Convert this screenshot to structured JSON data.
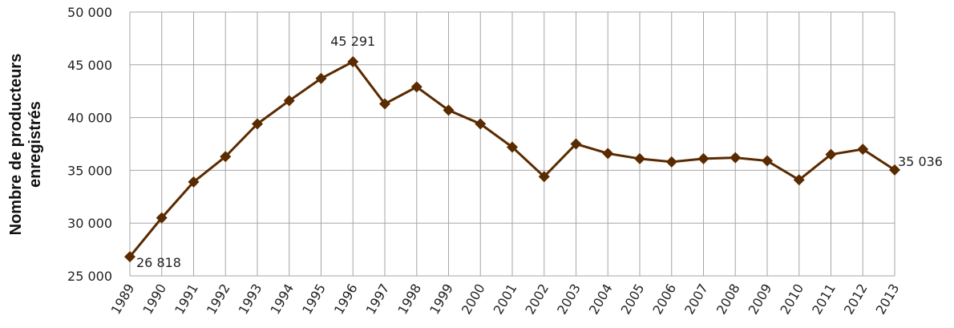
{
  "chart_data": {
    "type": "line",
    "y_label": "Nombre de producteurs enregistrés",
    "categories": [
      "1989",
      "1990",
      "1991",
      "1992",
      "1993",
      "1994",
      "1995",
      "1996",
      "1997",
      "1998",
      "1999",
      "2000",
      "2001",
      "2002",
      "2003",
      "2004",
      "2005",
      "2006",
      "2007",
      "2008",
      "2009",
      "2010",
      "2011",
      "2012",
      "2013"
    ],
    "series": [
      {
        "name": "Nombre de producteurs enregistrés",
        "color": "#5a2a00",
        "values": [
          26818,
          30500,
          33900,
          36300,
          39400,
          41600,
          43700,
          45291,
          41300,
          42900,
          40700,
          39400,
          37200,
          34400,
          37500,
          36600,
          36100,
          35800,
          36100,
          36200,
          35900,
          34100,
          36500,
          37000,
          35036
        ],
        "value_labels": [
          "26 818",
          null,
          null,
          null,
          null,
          null,
          null,
          "45 291",
          null,
          null,
          null,
          null,
          null,
          null,
          null,
          null,
          null,
          null,
          null,
          null,
          null,
          null,
          null,
          null,
          "35 036"
        ]
      }
    ],
    "ylim": [
      25000,
      50000
    ],
    "yticks": [
      {
        "value": 25000,
        "label": "25 000"
      },
      {
        "value": 30000,
        "label": "30 000"
      },
      {
        "value": 35000,
        "label": "35 000"
      },
      {
        "value": 40000,
        "label": "40 000"
      },
      {
        "value": 45000,
        "label": "45 000"
      },
      {
        "value": 50000,
        "label": "50 000"
      }
    ],
    "grid": true
  }
}
